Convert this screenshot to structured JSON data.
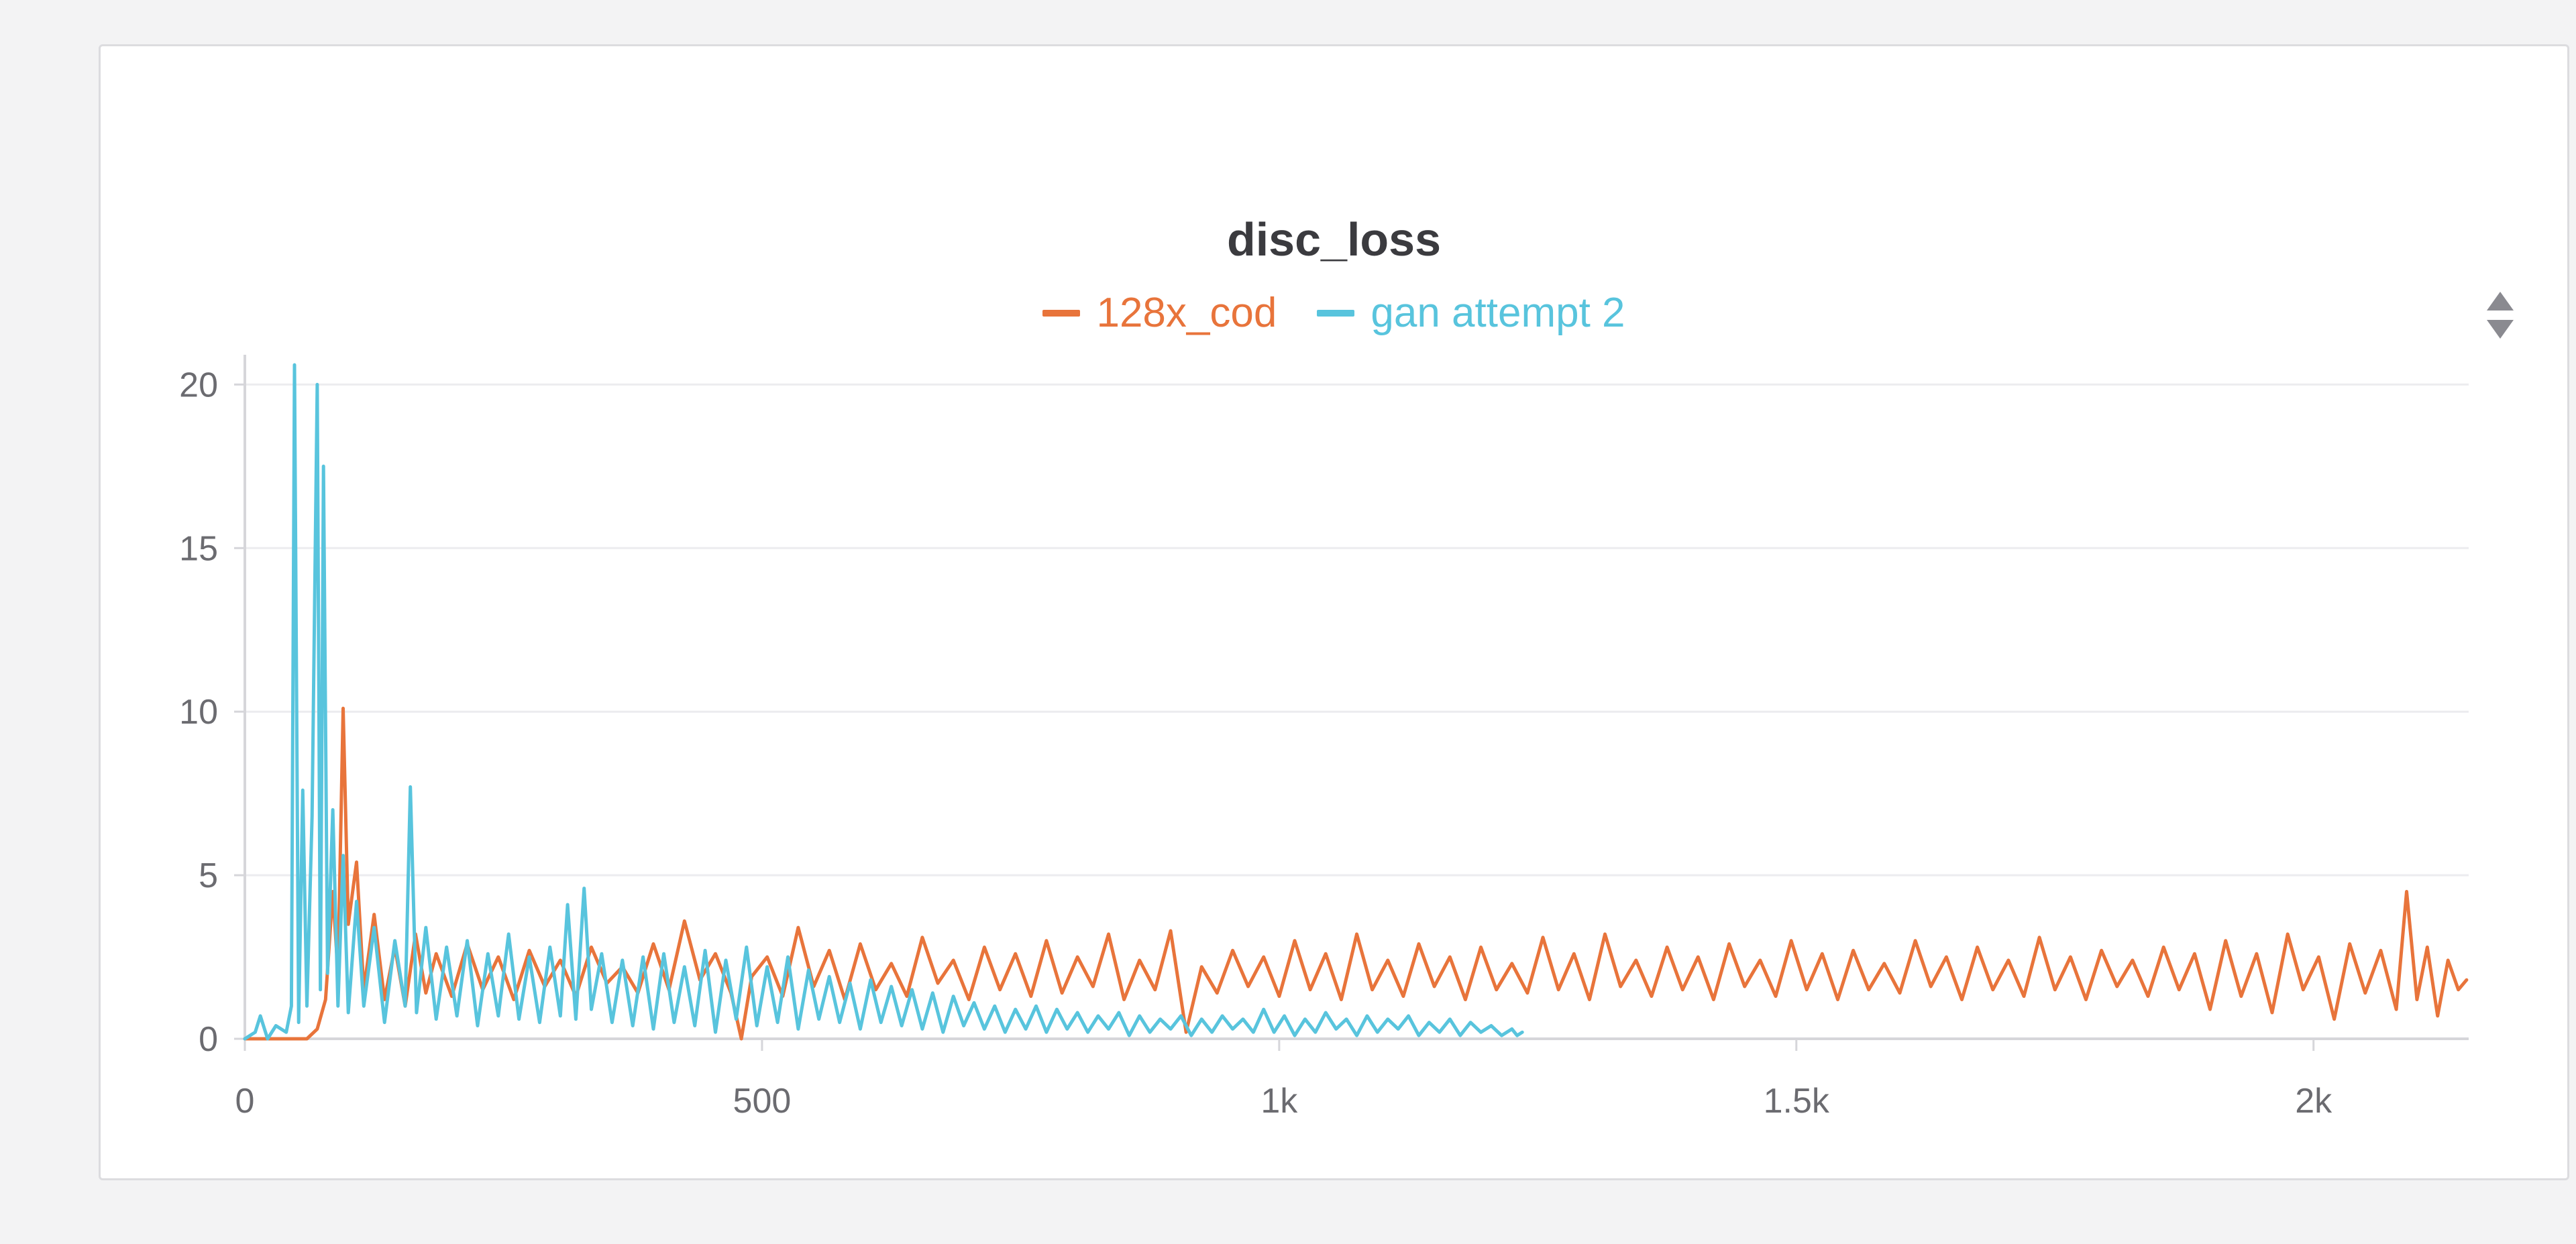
{
  "panel": {
    "title": "disc_loss"
  },
  "icons": {
    "sort": "sort-arrows-icon"
  },
  "chart_data": {
    "type": "line",
    "title": "disc_loss",
    "xlabel": "",
    "ylabel": "",
    "xlim": [
      0,
      2150
    ],
    "ylim": [
      0,
      20.5
    ],
    "grid": true,
    "legend_position": "top-center",
    "x_ticks": [
      {
        "value": 0,
        "label": "0"
      },
      {
        "value": 500,
        "label": "500"
      },
      {
        "value": 1000,
        "label": "1k"
      },
      {
        "value": 1500,
        "label": "1.5k"
      },
      {
        "value": 2000,
        "label": "2k"
      }
    ],
    "y_ticks": [
      {
        "value": 0,
        "label": "0"
      },
      {
        "value": 5,
        "label": "5"
      },
      {
        "value": 10,
        "label": "10"
      },
      {
        "value": 15,
        "label": "15"
      },
      {
        "value": 20,
        "label": "20"
      }
    ],
    "series": [
      {
        "name": "128x_cod",
        "color": "#e8743b",
        "points": [
          [
            0,
            0
          ],
          [
            40,
            0
          ],
          [
            60,
            0
          ],
          [
            70,
            0.3
          ],
          [
            78,
            1.2
          ],
          [
            85,
            4.5
          ],
          [
            90,
            2.0
          ],
          [
            95,
            10.1
          ],
          [
            100,
            3.5
          ],
          [
            108,
            5.4
          ],
          [
            115,
            1.5
          ],
          [
            125,
            3.8
          ],
          [
            135,
            1.2
          ],
          [
            145,
            2.8
          ],
          [
            155,
            1.0
          ],
          [
            165,
            3.2
          ],
          [
            175,
            1.4
          ],
          [
            185,
            2.6
          ],
          [
            200,
            1.3
          ],
          [
            215,
            2.9
          ],
          [
            230,
            1.5
          ],
          [
            245,
            2.5
          ],
          [
            260,
            1.2
          ],
          [
            275,
            2.7
          ],
          [
            290,
            1.6
          ],
          [
            305,
            2.4
          ],
          [
            320,
            1.3
          ],
          [
            335,
            2.8
          ],
          [
            350,
            1.7
          ],
          [
            365,
            2.2
          ],
          [
            380,
            1.4
          ],
          [
            395,
            2.9
          ],
          [
            410,
            1.5
          ],
          [
            425,
            3.6
          ],
          [
            440,
            1.8
          ],
          [
            455,
            2.6
          ],
          [
            470,
            1.4
          ],
          [
            480,
            0.0
          ],
          [
            490,
            1.9
          ],
          [
            505,
            2.5
          ],
          [
            520,
            1.3
          ],
          [
            535,
            3.4
          ],
          [
            550,
            1.6
          ],
          [
            565,
            2.7
          ],
          [
            580,
            1.2
          ],
          [
            595,
            2.9
          ],
          [
            610,
            1.5
          ],
          [
            625,
            2.3
          ],
          [
            640,
            1.3
          ],
          [
            655,
            3.1
          ],
          [
            670,
            1.7
          ],
          [
            685,
            2.4
          ],
          [
            700,
            1.2
          ],
          [
            715,
            2.8
          ],
          [
            730,
            1.5
          ],
          [
            745,
            2.6
          ],
          [
            760,
            1.3
          ],
          [
            775,
            3.0
          ],
          [
            790,
            1.4
          ],
          [
            805,
            2.5
          ],
          [
            820,
            1.6
          ],
          [
            835,
            3.2
          ],
          [
            850,
            1.2
          ],
          [
            865,
            2.4
          ],
          [
            880,
            1.5
          ],
          [
            895,
            3.3
          ],
          [
            910,
            0.2
          ],
          [
            925,
            2.2
          ],
          [
            940,
            1.4
          ],
          [
            955,
            2.7
          ],
          [
            970,
            1.6
          ],
          [
            985,
            2.5
          ],
          [
            1000,
            1.3
          ],
          [
            1015,
            3.0
          ],
          [
            1030,
            1.5
          ],
          [
            1045,
            2.6
          ],
          [
            1060,
            1.2
          ],
          [
            1075,
            3.2
          ],
          [
            1090,
            1.5
          ],
          [
            1105,
            2.4
          ],
          [
            1120,
            1.3
          ],
          [
            1135,
            2.9
          ],
          [
            1150,
            1.6
          ],
          [
            1165,
            2.5
          ],
          [
            1180,
            1.2
          ],
          [
            1195,
            2.8
          ],
          [
            1210,
            1.5
          ],
          [
            1225,
            2.3
          ],
          [
            1240,
            1.4
          ],
          [
            1255,
            3.1
          ],
          [
            1270,
            1.5
          ],
          [
            1285,
            2.6
          ],
          [
            1300,
            1.2
          ],
          [
            1315,
            3.2
          ],
          [
            1330,
            1.6
          ],
          [
            1345,
            2.4
          ],
          [
            1360,
            1.3
          ],
          [
            1375,
            2.8
          ],
          [
            1390,
            1.5
          ],
          [
            1405,
            2.5
          ],
          [
            1420,
            1.2
          ],
          [
            1435,
            2.9
          ],
          [
            1450,
            1.6
          ],
          [
            1465,
            2.4
          ],
          [
            1480,
            1.3
          ],
          [
            1495,
            3.0
          ],
          [
            1510,
            1.5
          ],
          [
            1525,
            2.6
          ],
          [
            1540,
            1.2
          ],
          [
            1555,
            2.7
          ],
          [
            1570,
            1.5
          ],
          [
            1585,
            2.3
          ],
          [
            1600,
            1.4
          ],
          [
            1615,
            3.0
          ],
          [
            1630,
            1.6
          ],
          [
            1645,
            2.5
          ],
          [
            1660,
            1.2
          ],
          [
            1675,
            2.8
          ],
          [
            1690,
            1.5
          ],
          [
            1705,
            2.4
          ],
          [
            1720,
            1.3
          ],
          [
            1735,
            3.1
          ],
          [
            1750,
            1.5
          ],
          [
            1765,
            2.5
          ],
          [
            1780,
            1.2
          ],
          [
            1795,
            2.7
          ],
          [
            1810,
            1.6
          ],
          [
            1825,
            2.4
          ],
          [
            1840,
            1.3
          ],
          [
            1855,
            2.8
          ],
          [
            1870,
            1.5
          ],
          [
            1885,
            2.6
          ],
          [
            1900,
            0.9
          ],
          [
            1915,
            3.0
          ],
          [
            1930,
            1.3
          ],
          [
            1945,
            2.6
          ],
          [
            1960,
            0.8
          ],
          [
            1975,
            3.2
          ],
          [
            1990,
            1.5
          ],
          [
            2005,
            2.5
          ],
          [
            2020,
            0.6
          ],
          [
            2035,
            2.9
          ],
          [
            2050,
            1.4
          ],
          [
            2065,
            2.7
          ],
          [
            2080,
            0.9
          ],
          [
            2090,
            4.5
          ],
          [
            2100,
            1.2
          ],
          [
            2110,
            2.8
          ],
          [
            2120,
            0.7
          ],
          [
            2130,
            2.4
          ],
          [
            2140,
            1.5
          ],
          [
            2148,
            1.8
          ]
        ]
      },
      {
        "name": "gan attempt 2",
        "color": "#58c4dd",
        "points": [
          [
            0,
            0
          ],
          [
            10,
            0.2
          ],
          [
            15,
            0.7
          ],
          [
            22,
            0
          ],
          [
            30,
            0.4
          ],
          [
            40,
            0.2
          ],
          [
            45,
            1.0
          ],
          [
            48,
            20.6
          ],
          [
            52,
            0.5
          ],
          [
            56,
            7.6
          ],
          [
            60,
            1.0
          ],
          [
            65,
            6.8
          ],
          [
            70,
            20.0
          ],
          [
            73,
            1.5
          ],
          [
            76,
            17.5
          ],
          [
            80,
            2.0
          ],
          [
            85,
            7.0
          ],
          [
            90,
            1.0
          ],
          [
            95,
            5.6
          ],
          [
            100,
            0.8
          ],
          [
            108,
            4.2
          ],
          [
            115,
            1.0
          ],
          [
            125,
            3.4
          ],
          [
            135,
            0.5
          ],
          [
            145,
            3.0
          ],
          [
            155,
            1.0
          ],
          [
            160,
            7.7
          ],
          [
            166,
            0.8
          ],
          [
            175,
            3.4
          ],
          [
            185,
            0.6
          ],
          [
            195,
            2.8
          ],
          [
            205,
            0.7
          ],
          [
            215,
            3.0
          ],
          [
            225,
            0.4
          ],
          [
            235,
            2.6
          ],
          [
            245,
            0.7
          ],
          [
            255,
            3.2
          ],
          [
            265,
            0.6
          ],
          [
            275,
            2.5
          ],
          [
            285,
            0.5
          ],
          [
            295,
            2.8
          ],
          [
            305,
            0.7
          ],
          [
            312,
            4.1
          ],
          [
            320,
            0.6
          ],
          [
            328,
            4.6
          ],
          [
            335,
            0.9
          ],
          [
            345,
            2.6
          ],
          [
            355,
            0.5
          ],
          [
            365,
            2.4
          ],
          [
            375,
            0.4
          ],
          [
            385,
            2.5
          ],
          [
            395,
            0.3
          ],
          [
            405,
            2.6
          ],
          [
            415,
            0.5
          ],
          [
            425,
            2.2
          ],
          [
            435,
            0.4
          ],
          [
            445,
            2.7
          ],
          [
            455,
            0.2
          ],
          [
            465,
            2.4
          ],
          [
            475,
            0.6
          ],
          [
            485,
            2.8
          ],
          [
            495,
            0.4
          ],
          [
            505,
            2.2
          ],
          [
            515,
            0.5
          ],
          [
            525,
            2.5
          ],
          [
            535,
            0.3
          ],
          [
            545,
            2.1
          ],
          [
            555,
            0.6
          ],
          [
            565,
            1.9
          ],
          [
            575,
            0.5
          ],
          [
            585,
            1.7
          ],
          [
            595,
            0.3
          ],
          [
            605,
            1.8
          ],
          [
            615,
            0.5
          ],
          [
            625,
            1.6
          ],
          [
            635,
            0.4
          ],
          [
            645,
            1.5
          ],
          [
            655,
            0.3
          ],
          [
            665,
            1.4
          ],
          [
            675,
            0.2
          ],
          [
            685,
            1.3
          ],
          [
            695,
            0.4
          ],
          [
            705,
            1.1
          ],
          [
            715,
            0.3
          ],
          [
            725,
            1.0
          ],
          [
            735,
            0.2
          ],
          [
            745,
            0.9
          ],
          [
            755,
            0.3
          ],
          [
            765,
            1.0
          ],
          [
            775,
            0.2
          ],
          [
            785,
            0.9
          ],
          [
            795,
            0.3
          ],
          [
            805,
            0.8
          ],
          [
            815,
            0.2
          ],
          [
            825,
            0.7
          ],
          [
            835,
            0.3
          ],
          [
            845,
            0.8
          ],
          [
            855,
            0.1
          ],
          [
            865,
            0.7
          ],
          [
            875,
            0.2
          ],
          [
            885,
            0.6
          ],
          [
            895,
            0.3
          ],
          [
            905,
            0.7
          ],
          [
            915,
            0.1
          ],
          [
            925,
            0.6
          ],
          [
            935,
            0.2
          ],
          [
            945,
            0.7
          ],
          [
            955,
            0.3
          ],
          [
            965,
            0.6
          ],
          [
            975,
            0.2
          ],
          [
            985,
            0.9
          ],
          [
            995,
            0.2
          ],
          [
            1005,
            0.7
          ],
          [
            1015,
            0.1
          ],
          [
            1025,
            0.6
          ],
          [
            1035,
            0.2
          ],
          [
            1045,
            0.8
          ],
          [
            1055,
            0.3
          ],
          [
            1065,
            0.6
          ],
          [
            1075,
            0.1
          ],
          [
            1085,
            0.7
          ],
          [
            1095,
            0.2
          ],
          [
            1105,
            0.6
          ],
          [
            1115,
            0.3
          ],
          [
            1125,
            0.7
          ],
          [
            1135,
            0.1
          ],
          [
            1145,
            0.5
          ],
          [
            1155,
            0.2
          ],
          [
            1165,
            0.6
          ],
          [
            1175,
            0.1
          ],
          [
            1185,
            0.5
          ],
          [
            1195,
            0.2
          ],
          [
            1205,
            0.4
          ],
          [
            1215,
            0.1
          ],
          [
            1225,
            0.3
          ],
          [
            1230,
            0.1
          ],
          [
            1235,
            0.2
          ]
        ]
      }
    ]
  }
}
